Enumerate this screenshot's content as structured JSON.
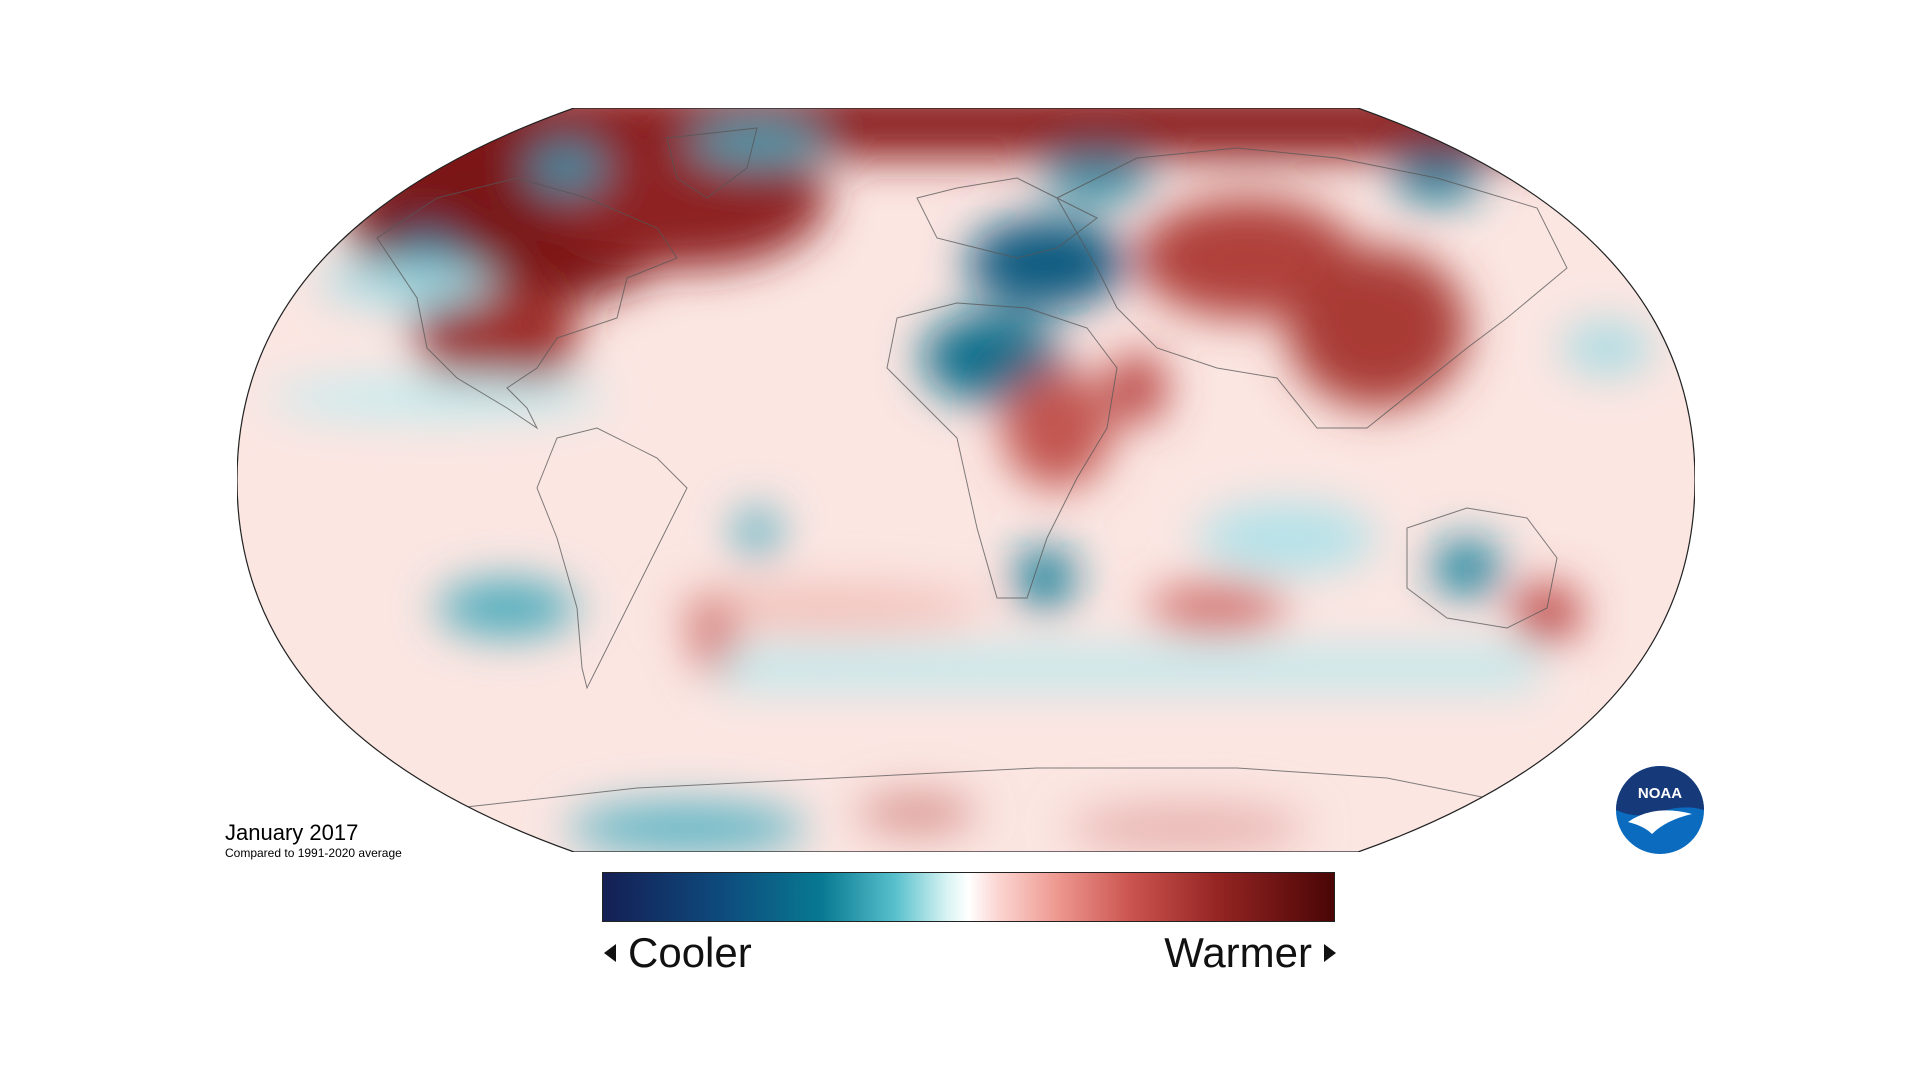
{
  "caption": {
    "title": "January 2017",
    "subtitle": "Compared to 1991-2020 average"
  },
  "legend": {
    "left_label": "Cooler",
    "right_label": "Warmer"
  },
  "logo": {
    "text": "NOAA"
  },
  "colors": {
    "coldest": "#141f55",
    "cool": "#087a92",
    "neutral": "#ffffff",
    "warm": "#cc5550",
    "warmest": "#4a0505",
    "noaa_blue": "#0a6bbf",
    "noaa_navy": "#16397a"
  }
}
